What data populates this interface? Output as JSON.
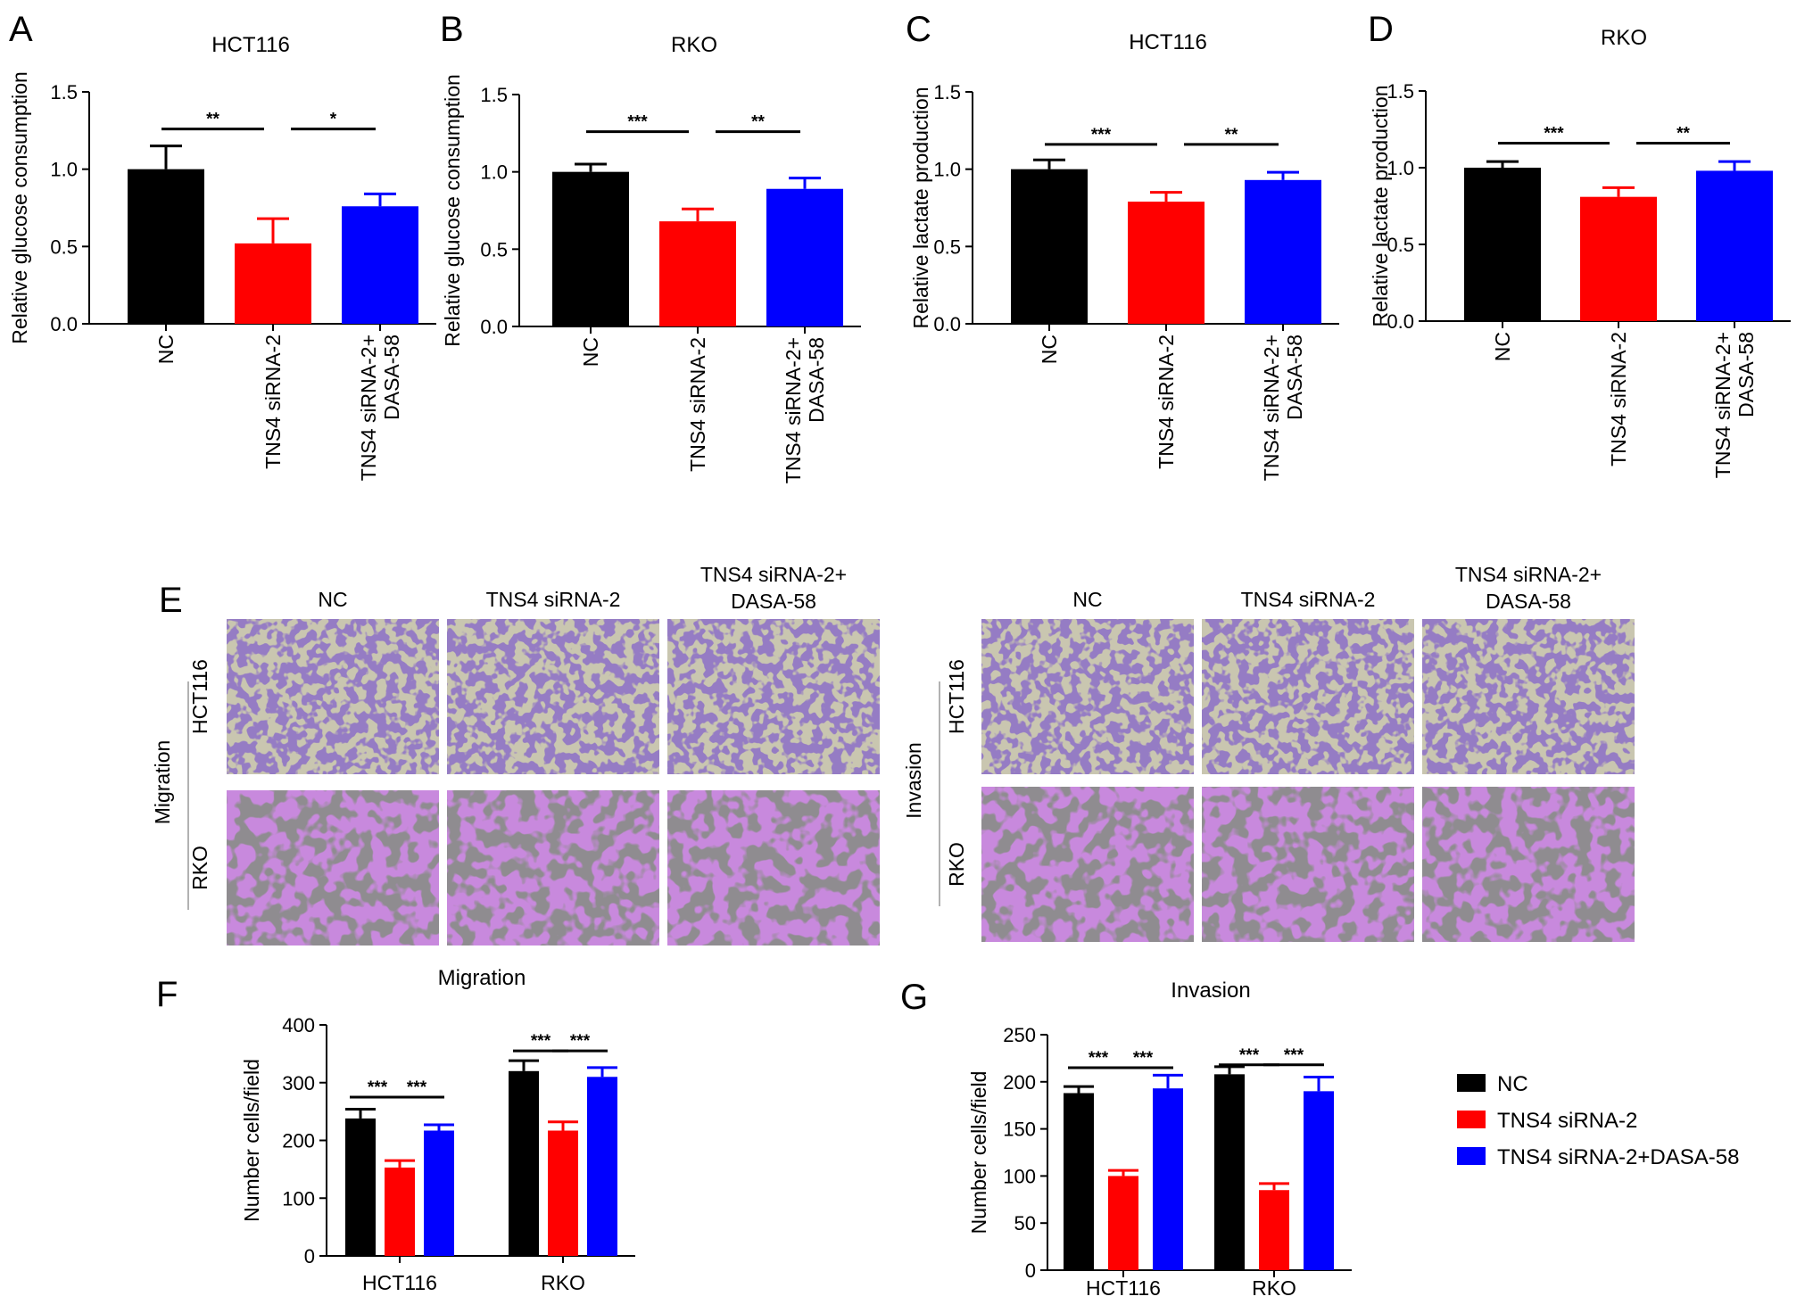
{
  "colors": {
    "nc": "#000000",
    "sirna": "#ff0000",
    "dasa": "#0000ff"
  },
  "chart_data": [
    {
      "id": "A",
      "type": "bar",
      "letter": "A",
      "title": "HCT116",
      "ylabel": "Relative glucose consumption",
      "ylim": [
        0,
        1.5
      ],
      "yticks": [
        "0.0",
        "0.5",
        "1.0",
        "1.5"
      ],
      "categories": [
        "NC",
        "TNS4 siRNA-2",
        "TNS4 siRNA-2+\nDASA-58"
      ],
      "values": [
        1.0,
        0.52,
        0.76
      ],
      "errors": [
        0.15,
        0.16,
        0.08
      ],
      "significance": [
        {
          "from": 0,
          "to": 1,
          "label": "**",
          "y": 1.26
        },
        {
          "from": 1,
          "to": 2,
          "label": "*",
          "y": 1.26
        }
      ]
    },
    {
      "id": "B",
      "type": "bar",
      "letter": "B",
      "title": "RKO",
      "ylabel": "Relative glucose consumption",
      "ylim": [
        0,
        1.5
      ],
      "yticks": [
        "0.0",
        "0.5",
        "1.0",
        "1.5"
      ],
      "categories": [
        "NC",
        "TNS4 siRNA-2",
        "TNS4 siRNA-2+\nDASA-58"
      ],
      "values": [
        1.0,
        0.68,
        0.89
      ],
      "errors": [
        0.05,
        0.08,
        0.07
      ],
      "significance": [
        {
          "from": 0,
          "to": 1,
          "label": "***",
          "y": 1.26
        },
        {
          "from": 1,
          "to": 2,
          "label": "**",
          "y": 1.26
        }
      ]
    },
    {
      "id": "C",
      "type": "bar",
      "letter": "C",
      "title": "HCT116",
      "ylabel": "Relative lactate production",
      "ylim": [
        0,
        1.5
      ],
      "yticks": [
        "0.0",
        "0.5",
        "1.0",
        "1.5"
      ],
      "categories": [
        "NC",
        "TNS4 siRNA-2",
        "TNS4 siRNA-2+\nDASA-58"
      ],
      "values": [
        1.0,
        0.79,
        0.93
      ],
      "errors": [
        0.06,
        0.06,
        0.05
      ],
      "significance": [
        {
          "from": 0,
          "to": 1,
          "label": "***",
          "y": 1.16
        },
        {
          "from": 1,
          "to": 2,
          "label": "**",
          "y": 1.16
        }
      ]
    },
    {
      "id": "D",
      "type": "bar",
      "letter": "D",
      "title": "RKO",
      "ylabel": "Relative lactate production",
      "ylim": [
        0,
        1.5
      ],
      "yticks": [
        "0.0",
        "0.5",
        "1.0",
        "1.5"
      ],
      "categories": [
        "NC",
        "TNS4 siRNA-2",
        "TNS4 siRNA-2+\nDASA-58"
      ],
      "values": [
        1.0,
        0.81,
        0.98
      ],
      "errors": [
        0.04,
        0.06,
        0.06
      ],
      "significance": [
        {
          "from": 0,
          "to": 1,
          "label": "***",
          "y": 1.16
        },
        {
          "from": 1,
          "to": 2,
          "label": "**",
          "y": 1.16
        }
      ]
    },
    {
      "id": "F",
      "type": "bar",
      "letter": "F",
      "title": "Migration",
      "ylabel": "Number cells/field",
      "ylim": [
        0,
        400
      ],
      "yticks": [
        "0",
        "100",
        "200",
        "300",
        "400"
      ],
      "categories": [
        "HCT116",
        "RKO"
      ],
      "series": [
        {
          "name": "NC",
          "values": [
            238,
            320
          ],
          "errors": [
            16,
            18
          ]
        },
        {
          "name": "TNS4 siRNA-2",
          "values": [
            153,
            217
          ],
          "errors": [
            12,
            15
          ]
        },
        {
          "name": "TNS4 siRNA-2+DASA-58",
          "values": [
            217,
            310
          ],
          "errors": [
            10,
            16
          ]
        }
      ],
      "significance": [
        {
          "group": 0,
          "from": 0,
          "to": 1,
          "label": "***",
          "y": 275
        },
        {
          "group": 0,
          "from": 1,
          "to": 2,
          "label": "***",
          "y": 275
        },
        {
          "group": 1,
          "from": 0,
          "to": 1,
          "label": "***",
          "y": 355
        },
        {
          "group": 1,
          "from": 1,
          "to": 2,
          "label": "***",
          "y": 355
        }
      ]
    },
    {
      "id": "G",
      "type": "bar",
      "letter": "G",
      "title": "Invasion",
      "ylabel": "Number cells/field",
      "ylim": [
        0,
        250
      ],
      "yticks": [
        "0",
        "50",
        "100",
        "150",
        "200",
        "250"
      ],
      "categories": [
        "HCT116",
        "RKO"
      ],
      "series": [
        {
          "name": "NC",
          "values": [
            188,
            208
          ],
          "errors": [
            7,
            8
          ]
        },
        {
          "name": "TNS4 siRNA-2",
          "values": [
            100,
            85
          ],
          "errors": [
            6,
            7
          ]
        },
        {
          "name": "TNS4 siRNA-2+DASA-58",
          "values": [
            193,
            190
          ],
          "errors": [
            14,
            15
          ]
        }
      ],
      "significance": [
        {
          "group": 0,
          "from": 0,
          "to": 1,
          "label": "***",
          "y": 215
        },
        {
          "group": 0,
          "from": 1,
          "to": 2,
          "label": "***",
          "y": 215
        },
        {
          "group": 1,
          "from": 0,
          "to": 1,
          "label": "***",
          "y": 218
        },
        {
          "group": 1,
          "from": 1,
          "to": 2,
          "label": "***",
          "y": 218
        }
      ]
    }
  ],
  "panel_e": {
    "letter": "E",
    "migration": {
      "label": "Migration",
      "columns": [
        "NC",
        "TNS4 siRNA-2",
        "TNS4 siRNA-2+\nDASA-58"
      ],
      "rows": [
        "HCT116",
        "RKO"
      ]
    },
    "invasion": {
      "label": "Invasion",
      "columns": [
        "NC",
        "TNS4 siRNA-2",
        "TNS4 siRNA-2+\nDASA-58"
      ],
      "rows": [
        "HCT116",
        "RKO"
      ]
    }
  },
  "legend": {
    "placement": "right",
    "items": [
      {
        "label": "NC",
        "color": "#000000"
      },
      {
        "label": "TNS4 siRNA-2",
        "color": "#ff0000"
      },
      {
        "label": "TNS4 siRNA-2+DASA-58",
        "color": "#0000ff"
      }
    ]
  }
}
